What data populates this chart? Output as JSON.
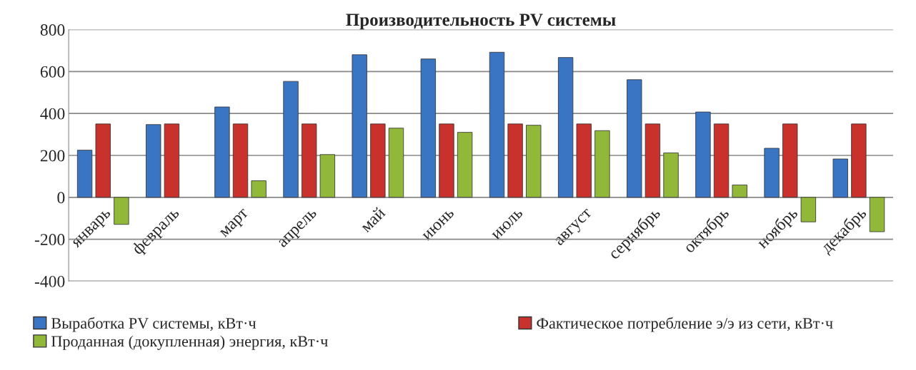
{
  "chart_data": {
    "type": "bar",
    "title": "Производительность PV системы",
    "categories": [
      "январь",
      "февраль",
      "март",
      "апрель",
      "май",
      "июнь",
      "июль",
      "август",
      "сернябрь",
      "октябрь",
      "ноябрь",
      "декабрь"
    ],
    "series": [
      {
        "name": "Выработка PV системы, кВт·ч",
        "color": "#3a75c4",
        "values": [
          225,
          347,
          431,
          553,
          680,
          660,
          692,
          667,
          561,
          407,
          234,
          183
        ]
      },
      {
        "name": "Фактическое потребление э/э из сети, кВт·ч",
        "color": "#c8312c",
        "values": [
          350,
          350,
          350,
          350,
          350,
          350,
          350,
          350,
          350,
          350,
          350,
          350
        ]
      },
      {
        "name": "Проданная (докупленная) энергия, кВт·ч",
        "color": "#92b83a",
        "values": [
          -129,
          null,
          79,
          204,
          330,
          310,
          344,
          318,
          212,
          59,
          -117,
          -164
        ]
      }
    ],
    "ylim": [
      -400,
      800
    ],
    "yticks": [
      -400,
      -200,
      0,
      200,
      400,
      600,
      800
    ],
    "grid": "y",
    "legend": "bottom"
  }
}
